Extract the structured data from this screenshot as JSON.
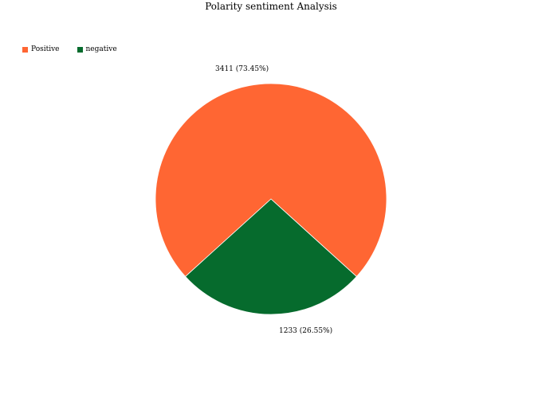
{
  "chart_data": {
    "type": "pie",
    "title": "Polarity sentiment Analysis",
    "legend_position": "top-left",
    "slices": [
      {
        "name": "Positive",
        "value": 3411,
        "percent": 73.45,
        "label": "3411 (73.45%)",
        "color": "#ff6633"
      },
      {
        "name": "negative",
        "value": 1233,
        "percent": 26.55,
        "label": "1233 (26.55%)",
        "color": "#066b2d"
      }
    ]
  }
}
